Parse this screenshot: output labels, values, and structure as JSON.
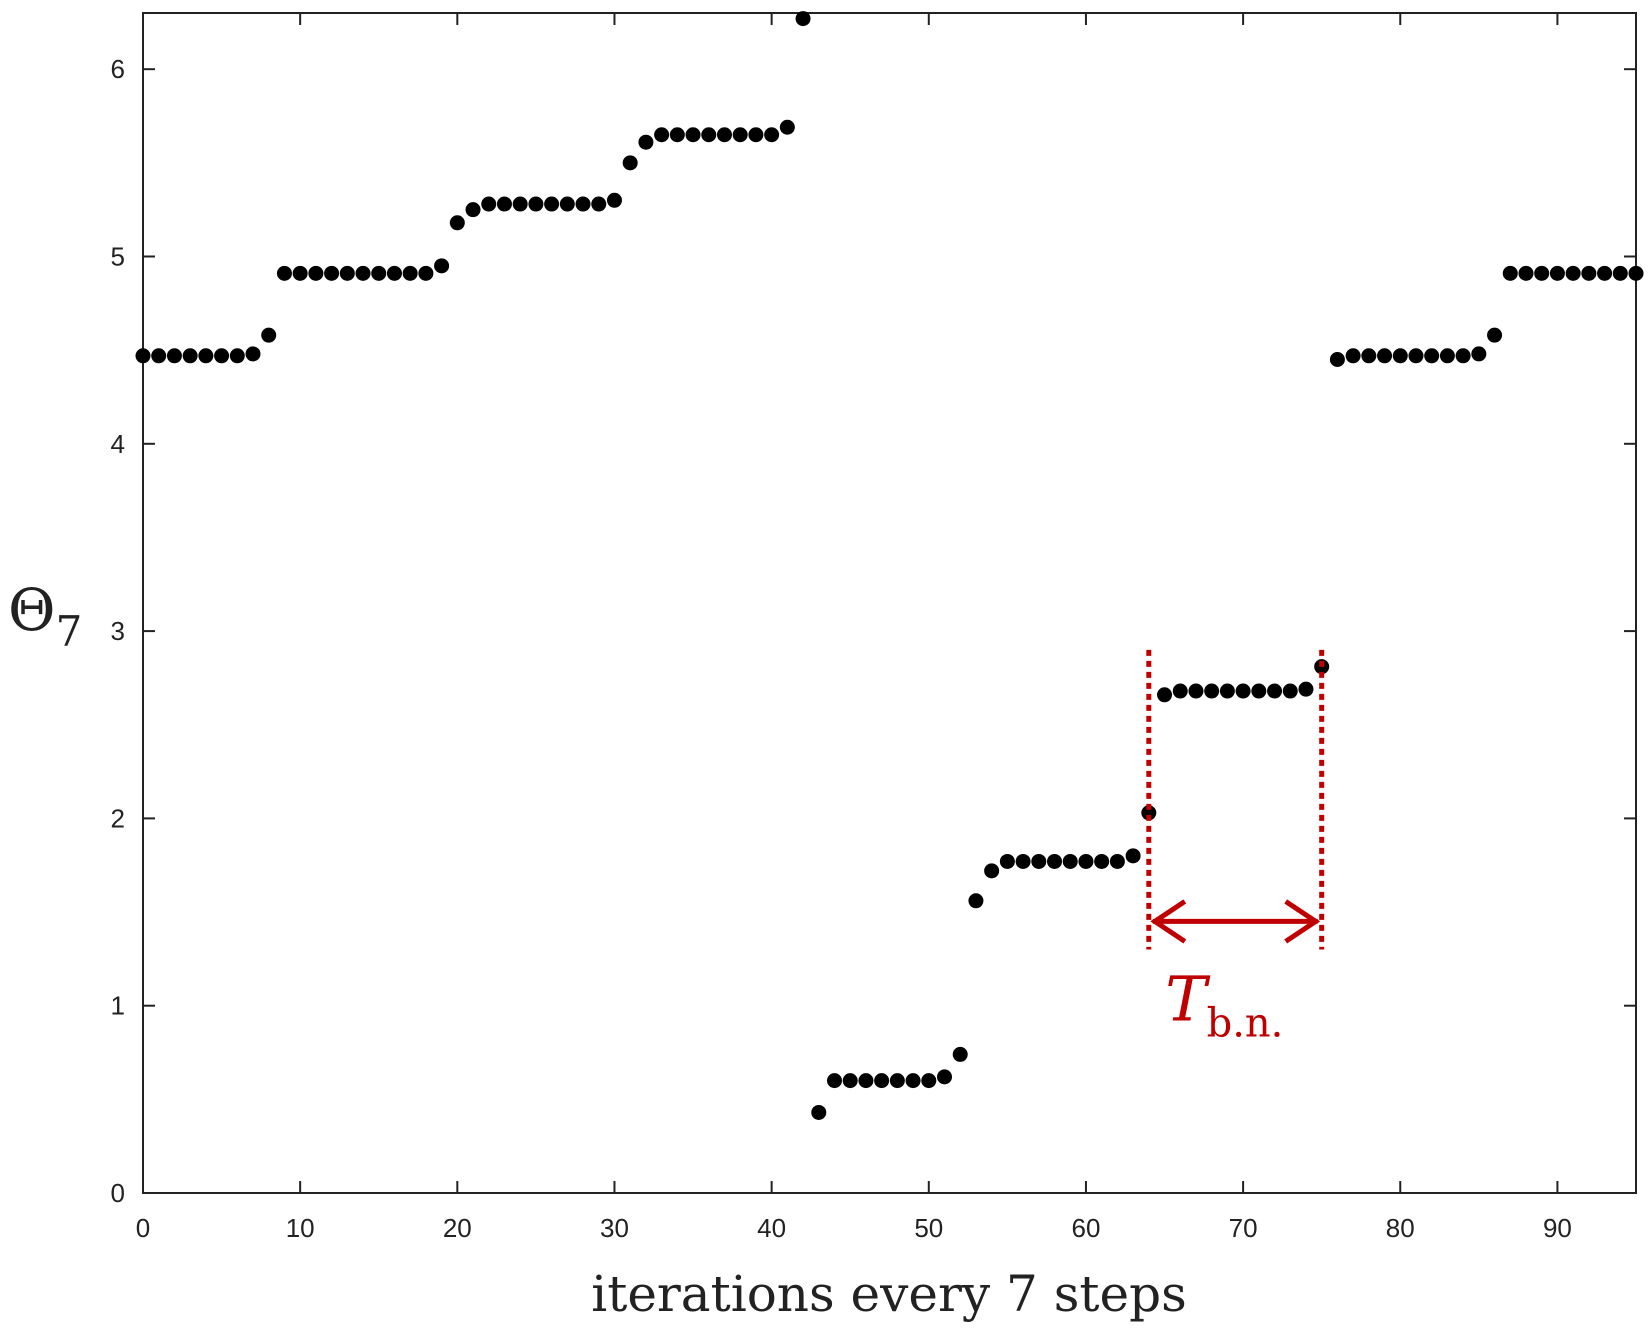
{
  "chart_data": {
    "type": "scatter",
    "title": "",
    "xlabel": "iterations every 7 steps",
    "ylabel": {
      "main": "Θ",
      "sub": "7"
    },
    "xlim": [
      0,
      95
    ],
    "ylim": [
      0,
      6.3
    ],
    "xticks": [
      0,
      10,
      20,
      30,
      40,
      50,
      60,
      70,
      80,
      90
    ],
    "yticks": [
      0,
      1,
      2,
      3,
      4,
      5,
      6
    ],
    "grid": false,
    "marker_color": "#000000",
    "series": [
      {
        "x": [
          0,
          1,
          2,
          3,
          4,
          5,
          6,
          7,
          8,
          9,
          10,
          11,
          12,
          13,
          14,
          15,
          16,
          17,
          18,
          19,
          20,
          21,
          22,
          23,
          24,
          25,
          26,
          27,
          28,
          29,
          30,
          31,
          32,
          33,
          34,
          35,
          36,
          37,
          38,
          39,
          40,
          41,
          42,
          43,
          44,
          45,
          46,
          47,
          48,
          49,
          50,
          51,
          52,
          53,
          54,
          55,
          56,
          57,
          58,
          59,
          60,
          61,
          62,
          63,
          64,
          65,
          66,
          67,
          68,
          69,
          70,
          71,
          72,
          73,
          74,
          75,
          76,
          77,
          78,
          79,
          80,
          81,
          82,
          83,
          84,
          85,
          86,
          87,
          88,
          89,
          90,
          91,
          92,
          93,
          94,
          95
        ],
        "y": [
          4.47,
          4.47,
          4.47,
          4.47,
          4.47,
          4.47,
          4.47,
          4.48,
          4.58,
          4.91,
          4.91,
          4.91,
          4.91,
          4.91,
          4.91,
          4.91,
          4.91,
          4.91,
          4.91,
          4.95,
          5.18,
          5.25,
          5.28,
          5.28,
          5.28,
          5.28,
          5.28,
          5.28,
          5.28,
          5.28,
          5.3,
          5.5,
          5.61,
          5.65,
          5.65,
          5.65,
          5.65,
          5.65,
          5.65,
          5.65,
          5.65,
          5.69,
          6.27,
          0.43,
          0.6,
          0.6,
          0.6,
          0.6,
          0.6,
          0.6,
          0.6,
          0.62,
          0.74,
          1.56,
          1.72,
          1.77,
          1.77,
          1.77,
          1.77,
          1.77,
          1.77,
          1.77,
          1.77,
          1.8,
          2.03,
          2.66,
          2.68,
          2.68,
          2.68,
          2.68,
          2.68,
          2.68,
          2.68,
          2.68,
          2.69,
          2.81,
          4.45,
          4.47,
          4.47,
          4.47,
          4.47,
          4.47,
          4.47,
          4.47,
          4.47,
          4.48,
          4.58,
          4.91,
          4.91,
          4.91,
          4.91,
          4.91,
          4.91,
          4.91,
          4.91,
          4.91
        ]
      }
    ],
    "annotation": {
      "label_main": "T",
      "label_sub": "b.n.",
      "x_start": 64,
      "x_end": 75,
      "color": "#c00000"
    }
  }
}
